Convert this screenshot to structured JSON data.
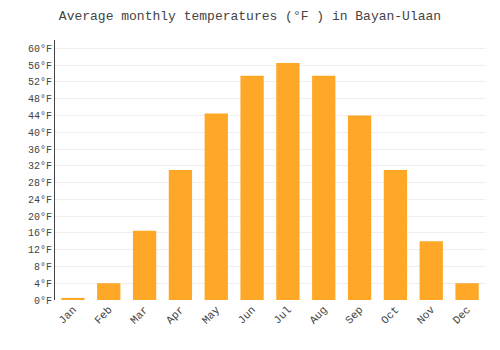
{
  "chart_data": {
    "type": "bar",
    "title": "Average monthly temperatures (°F ) in Bayan-Ulaan",
    "categories": [
      "Jan",
      "Feb",
      "Mar",
      "Apr",
      "May",
      "Jun",
      "Jul",
      "Aug",
      "Sep",
      "Oct",
      "Nov",
      "Dec"
    ],
    "values": [
      0.5,
      4,
      16.5,
      31,
      44.5,
      53.5,
      56.5,
      53.5,
      44,
      31,
      14,
      4
    ],
    "color": "#FFA726",
    "ylim": [
      0,
      62
    ],
    "yticks": [
      {
        "value": 0,
        "label": "0°F"
      },
      {
        "value": 4,
        "label": "4°F"
      },
      {
        "value": 8,
        "label": "8°F"
      },
      {
        "value": 12,
        "label": "12°F"
      },
      {
        "value": 16,
        "label": "16°F"
      },
      {
        "value": 20,
        "label": "20°F"
      },
      {
        "value": 24,
        "label": "24°F"
      },
      {
        "value": 28,
        "label": "28°F"
      },
      {
        "value": 32,
        "label": "32°F"
      },
      {
        "value": 36,
        "label": "36°F"
      },
      {
        "value": 40,
        "label": "40°F"
      },
      {
        "value": 44,
        "label": "44°F"
      },
      {
        "value": 48,
        "label": "48°F"
      },
      {
        "value": 52,
        "label": "52°F"
      },
      {
        "value": 56,
        "label": "56°F"
      },
      {
        "value": 60,
        "label": "60°F"
      }
    ],
    "grid": true
  }
}
